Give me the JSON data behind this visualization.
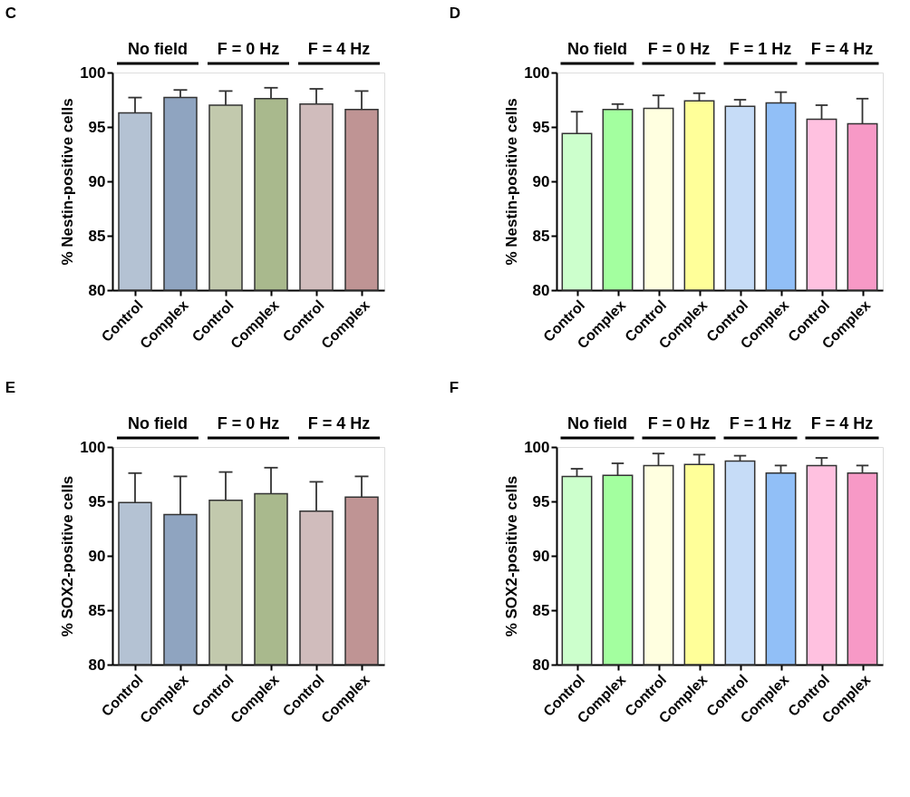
{
  "chart_data": [
    {
      "type": "bar",
      "title": "C",
      "ylabel": "% Nestin-positive cells",
      "categories": [
        "Control",
        "Complex",
        "Control",
        "Complex",
        "Control",
        "Complex"
      ],
      "values": [
        96.3,
        97.7,
        97.0,
        97.6,
        97.1,
        96.6
      ],
      "errors": [
        [
          96.3,
          97.7
        ],
        [
          97.7,
          98.4
        ],
        [
          97.0,
          98.3
        ],
        [
          97.6,
          98.6
        ],
        [
          97.1,
          98.5
        ],
        [
          96.6,
          98.3
        ]
      ],
      "colors": [
        "#b4c2d3",
        "#8fa4c0",
        "#c2c9ad",
        "#a9b98d",
        "#d0bcbc",
        "#bf9494"
      ],
      "ylim": [
        80,
        100
      ],
      "yticks": [
        80,
        85,
        90,
        95,
        100
      ],
      "annotations": [
        "No field",
        "F = 0 Hz",
        "F = 4 Hz"
      ]
    },
    {
      "type": "bar",
      "title": "D",
      "ylabel": "% Nestin-positive cells",
      "categories": [
        "Control",
        "Complex",
        "Control",
        "Complex",
        "Control",
        "Complex",
        "Control",
        "Complex"
      ],
      "values": [
        94.4,
        96.6,
        96.7,
        97.4,
        96.9,
        97.2,
        95.7,
        95.3
      ],
      "errors": [
        [
          94.4,
          96.4
        ],
        [
          96.6,
          97.1
        ],
        [
          96.7,
          97.9
        ],
        [
          97.4,
          98.1
        ],
        [
          96.9,
          97.5
        ],
        [
          97.2,
          98.2
        ],
        [
          95.7,
          97.0
        ],
        [
          95.3,
          97.6
        ]
      ],
      "colors": [
        "#ccffcc",
        "#a3ff9f",
        "#ffffe0",
        "#ffff99",
        "#c6dcf7",
        "#91bff7",
        "#ffc1e0",
        "#f799c6"
      ],
      "ylim": [
        80,
        100
      ],
      "yticks": [
        80,
        85,
        90,
        95,
        100
      ],
      "annotations": [
        "No field",
        "F = 0 Hz",
        "F = 1 Hz",
        "F = 4 Hz"
      ]
    },
    {
      "type": "bar",
      "title": "E",
      "ylabel": "% SOX2-positive cells",
      "categories": [
        "Control",
        "Complex",
        "Control",
        "Complex",
        "Control",
        "Complex"
      ],
      "values": [
        94.9,
        93.8,
        95.1,
        95.7,
        94.1,
        95.4
      ],
      "errors": [
        [
          94.9,
          97.6
        ],
        [
          93.8,
          97.3
        ],
        [
          95.1,
          97.7
        ],
        [
          95.7,
          98.1
        ],
        [
          94.1,
          96.8
        ],
        [
          95.4,
          97.3
        ]
      ],
      "colors": [
        "#b4c2d3",
        "#8fa4c0",
        "#c2c9ad",
        "#a9b98d",
        "#d0bcbc",
        "#bf9494"
      ],
      "ylim": [
        80,
        100
      ],
      "yticks": [
        80,
        85,
        90,
        95,
        100
      ],
      "annotations": [
        "No field",
        "F = 0 Hz",
        "F = 4 Hz"
      ]
    },
    {
      "type": "bar",
      "title": "F",
      "ylabel": "% SOX2-positive cells",
      "categories": [
        "Control",
        "Complex",
        "Control",
        "Complex",
        "Control",
        "Complex",
        "Control",
        "Complex"
      ],
      "values": [
        97.3,
        97.4,
        98.3,
        98.4,
        98.7,
        97.6,
        98.3,
        97.6
      ],
      "errors": [
        [
          97.3,
          98.0
        ],
        [
          97.4,
          98.5
        ],
        [
          98.3,
          99.4
        ],
        [
          98.4,
          99.3
        ],
        [
          98.7,
          99.2
        ],
        [
          97.6,
          98.3
        ],
        [
          98.3,
          99.0
        ],
        [
          97.6,
          98.3
        ]
      ],
      "colors": [
        "#ccffcc",
        "#a3ff9f",
        "#ffffe0",
        "#ffff99",
        "#c6dcf7",
        "#91bff7",
        "#ffc1e0",
        "#f799c6"
      ],
      "ylim": [
        80,
        100
      ],
      "yticks": [
        80,
        85,
        90,
        95,
        100
      ],
      "annotations": [
        "No field",
        "F = 0 Hz",
        "F = 1 Hz",
        "F = 4 Hz"
      ]
    }
  ]
}
